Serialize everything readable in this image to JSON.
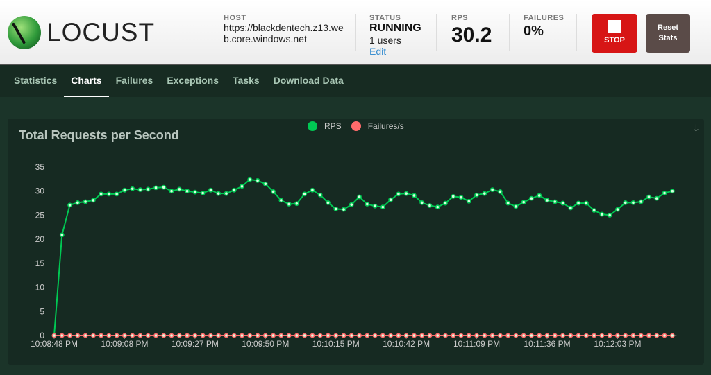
{
  "header": {
    "logo_text": "LOCUST",
    "host_label": "HOST",
    "host_value": "https://blackdentech.z13.web.core.windows.net",
    "status_label": "STATUS",
    "status_value": "RUNNING",
    "users": "1 users",
    "edit": "Edit",
    "rps_label": "RPS",
    "rps_value": "30.2",
    "failures_label": "FAILURES",
    "failures_value": "0%",
    "stop_label": "STOP",
    "reset_label": "Reset Stats"
  },
  "nav": {
    "tabs": [
      "Statistics",
      "Charts",
      "Failures",
      "Exceptions",
      "Tasks",
      "Download Data"
    ],
    "active": "Charts"
  },
  "colors": {
    "rps": "#00c853",
    "failures": "#ff6b6b",
    "stop": "#d71515"
  },
  "chart_data": {
    "type": "line",
    "title": "Total Requests per Second",
    "ylim": [
      0,
      35
    ],
    "yticks": [
      0,
      5,
      10,
      15,
      20,
      25,
      30,
      35
    ],
    "x_tick_labels": [
      "10:08:48 PM",
      "10:09:08 PM",
      "10:09:27 PM",
      "10:09:50 PM",
      "10:10:15 PM",
      "10:10:42 PM",
      "10:11:09 PM",
      "10:11:36 PM",
      "10:12:03 PM"
    ],
    "x_tick_every": 9,
    "legend": "top-center",
    "series": [
      {
        "name": "RPS",
        "color": "#00c853",
        "values": [
          0,
          20.9,
          27.1,
          27.6,
          27.8,
          28.1,
          29.4,
          29.4,
          29.4,
          30.2,
          30.5,
          30.3,
          30.4,
          30.7,
          30.8,
          30.0,
          30.4,
          30.0,
          29.8,
          29.6,
          30.2,
          29.5,
          29.5,
          30.2,
          31.0,
          32.4,
          32.2,
          31.5,
          29.9,
          28.1,
          27.3,
          27.4,
          29.4,
          30.2,
          29.2,
          27.6,
          26.3,
          26.2,
          27.2,
          28.8,
          27.3,
          26.9,
          26.7,
          28.2,
          29.4,
          29.5,
          29.1,
          27.6,
          27.0,
          26.7,
          27.5,
          28.9,
          28.7,
          27.9,
          29.2,
          29.5,
          30.3,
          29.9,
          27.5,
          26.8,
          27.7,
          28.5,
          29.1,
          28.1,
          27.8,
          27.5,
          26.5,
          27.5,
          27.5,
          26.0,
          25.2,
          25.0,
          26.2,
          27.6,
          27.6,
          27.8,
          28.8,
          28.5,
          29.6,
          30.0
        ]
      },
      {
        "name": "Failures/s",
        "color": "#ff6b6b",
        "values": "zeros"
      }
    ]
  }
}
